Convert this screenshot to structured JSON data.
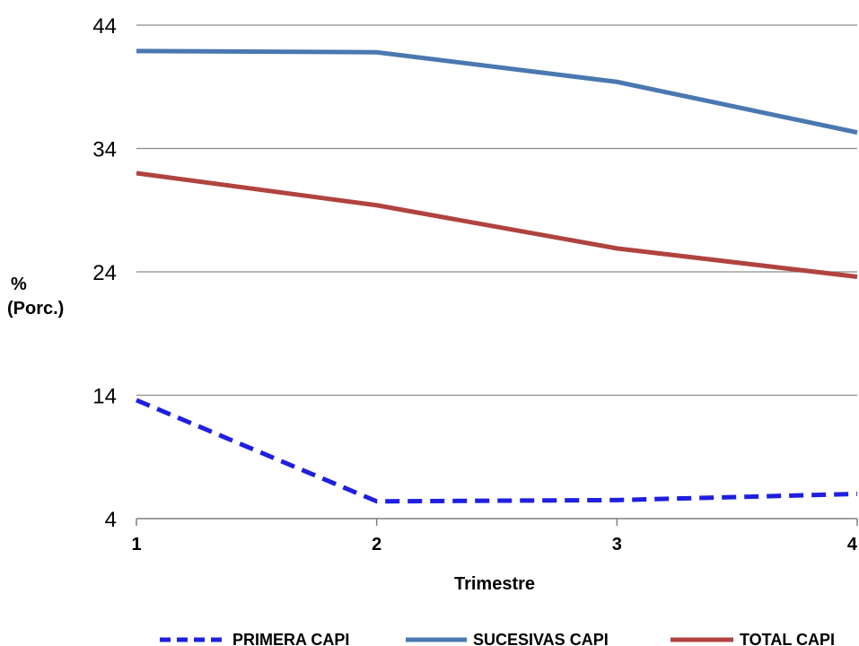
{
  "chart_data": {
    "type": "line",
    "title": "",
    "xlabel": "Trimestre",
    "ylabel_lines": [
      "%",
      "(Porc.)"
    ],
    "x": [
      1,
      2,
      3,
      4
    ],
    "x_tick_labels": [
      "1",
      "2",
      "3",
      "4"
    ],
    "y_ticks": [
      4,
      14,
      24,
      34,
      44
    ],
    "y_tick_labels": [
      "4",
      "14",
      "24",
      "34",
      "44"
    ],
    "ylim": [
      4,
      44
    ],
    "grid": "horizontal",
    "legend_position": "bottom",
    "series": [
      {
        "name": "PRIMERA CAPI",
        "values": [
          13.6,
          5.4,
          5.5,
          6.0
        ],
        "color": "#1f1fe0",
        "dashed": true
      },
      {
        "name": "SUCESIVAS CAPI",
        "values": [
          41.9,
          41.8,
          39.4,
          35.3
        ],
        "color": "#4a78b0",
        "dashed": false
      },
      {
        "name": "TOTAL CAPI",
        "values": [
          32.0,
          29.4,
          25.9,
          23.6
        ],
        "color": "#b0433f",
        "dashed": false
      }
    ]
  }
}
